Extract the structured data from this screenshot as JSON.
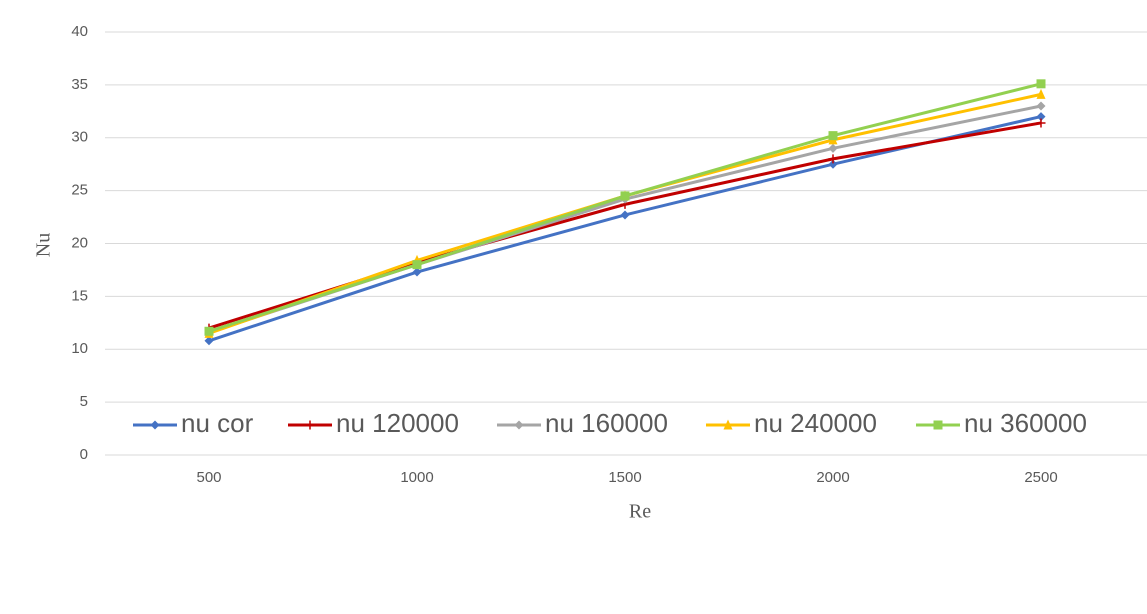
{
  "chart_data": {
    "type": "line",
    "x_label": "Re",
    "y_label": "Nu",
    "categories": [
      "500",
      "1000",
      "1500",
      "2000",
      "2500"
    ],
    "series": [
      {
        "name": "nu cor",
        "color": "#4472c4",
        "marker": "diamond",
        "values": [
          10.8,
          17.3,
          22.7,
          27.5,
          32.0
        ]
      },
      {
        "name": "nu 120000",
        "color": "#c00000",
        "marker": "plus",
        "values": [
          12.0,
          18.2,
          23.7,
          28.0,
          31.4
        ]
      },
      {
        "name": "nu 160000",
        "color": "#a5a5a5",
        "marker": "diamond",
        "values": [
          11.6,
          18.0,
          24.2,
          29.0,
          33.0
        ]
      },
      {
        "name": "nu 240000",
        "color": "#ffc000",
        "marker": "triangle",
        "values": [
          11.5,
          18.4,
          24.5,
          29.8,
          34.1
        ]
      },
      {
        "name": "nu 360000",
        "color": "#92d050",
        "marker": "square",
        "values": [
          11.7,
          18.0,
          24.5,
          30.2,
          35.1
        ]
      }
    ],
    "ylim": [
      0,
      40
    ],
    "yticks": [
      0,
      5,
      10,
      15,
      20,
      25,
      30,
      35,
      40
    ],
    "grid": true,
    "legend": "bottom"
  }
}
